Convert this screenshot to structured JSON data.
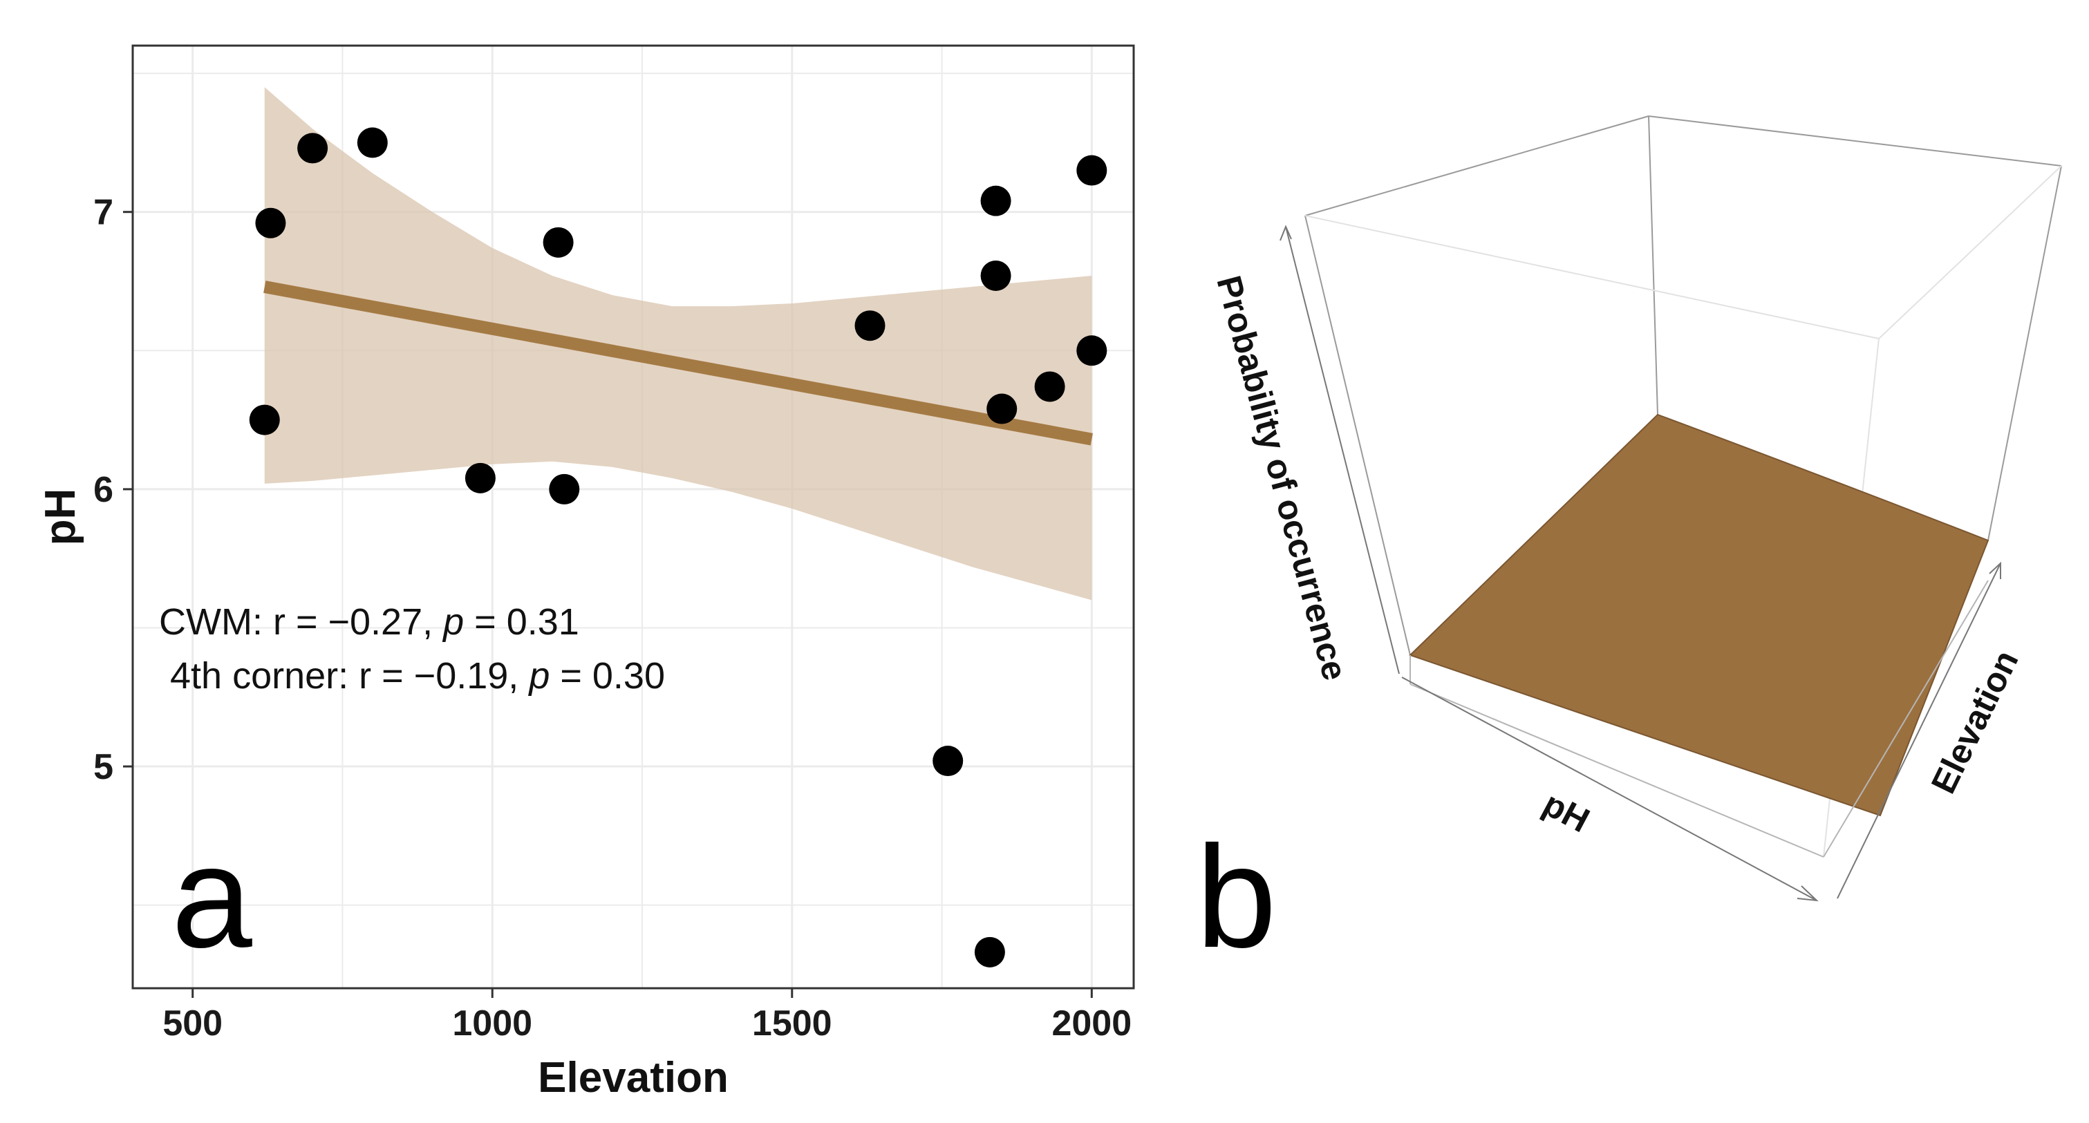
{
  "colors": {
    "band": "#d9c4ad",
    "line": "#a47a44",
    "point": "#000000",
    "surface": "#9b703f",
    "surface_edge": "#7a5630",
    "grid": "#ebebeb",
    "panel_border": "#333333"
  },
  "panel_a_letter": "a",
  "panel_b_letter": "b",
  "annotation": {
    "line1_prefix": "CWM: r = −0.27, ",
    "line1_p": "p",
    "line1_suffix": " = 0.31",
    "line2_prefix": "4th corner: r = −0.19, ",
    "line2_p": "p",
    "line2_suffix": " = 0.30"
  },
  "chart_data": [
    {
      "type": "scatter",
      "panel": "a",
      "xlabel": "Elevation",
      "ylabel": "pH",
      "xlim": [
        400,
        2070
      ],
      "ylim": [
        4.2,
        7.6
      ],
      "x_ticks": [
        500,
        1000,
        1500,
        2000
      ],
      "y_ticks": [
        5,
        6,
        7
      ],
      "grid": true,
      "points": [
        {
          "x": 620,
          "y": 6.25
        },
        {
          "x": 630,
          "y": 6.96
        },
        {
          "x": 700,
          "y": 7.23
        },
        {
          "x": 800,
          "y": 7.25
        },
        {
          "x": 980,
          "y": 6.04
        },
        {
          "x": 1110,
          "y": 6.89
        },
        {
          "x": 1120,
          "y": 6.0
        },
        {
          "x": 1630,
          "y": 6.59
        },
        {
          "x": 1760,
          "y": 5.02
        },
        {
          "x": 1830,
          "y": 4.33
        },
        {
          "x": 1840,
          "y": 7.04
        },
        {
          "x": 1840,
          "y": 6.77
        },
        {
          "x": 1850,
          "y": 6.29
        },
        {
          "x": 1930,
          "y": 6.37
        },
        {
          "x": 2000,
          "y": 7.15
        },
        {
          "x": 2000,
          "y": 6.5
        }
      ],
      "fit_line": {
        "x": [
          620,
          2000
        ],
        "y": [
          6.73,
          6.18
        ]
      },
      "confidence_band": {
        "x": [
          620,
          700,
          800,
          900,
          1000,
          1100,
          1200,
          1300,
          1400,
          1500,
          1600,
          1700,
          1800,
          1900,
          2000
        ],
        "upper": [
          7.45,
          7.3,
          7.14,
          7.0,
          6.87,
          6.77,
          6.7,
          6.66,
          6.66,
          6.67,
          6.69,
          6.71,
          6.73,
          6.75,
          6.77
        ],
        "lower": [
          6.02,
          6.03,
          6.05,
          6.07,
          6.09,
          6.1,
          6.08,
          6.04,
          5.99,
          5.93,
          5.86,
          5.79,
          5.72,
          5.66,
          5.6
        ]
      }
    },
    {
      "type": "surface3d",
      "panel": "b",
      "xlabel": "pH",
      "ylabel": "Elevation",
      "zlabel": "Probability of occurrence"
    }
  ]
}
